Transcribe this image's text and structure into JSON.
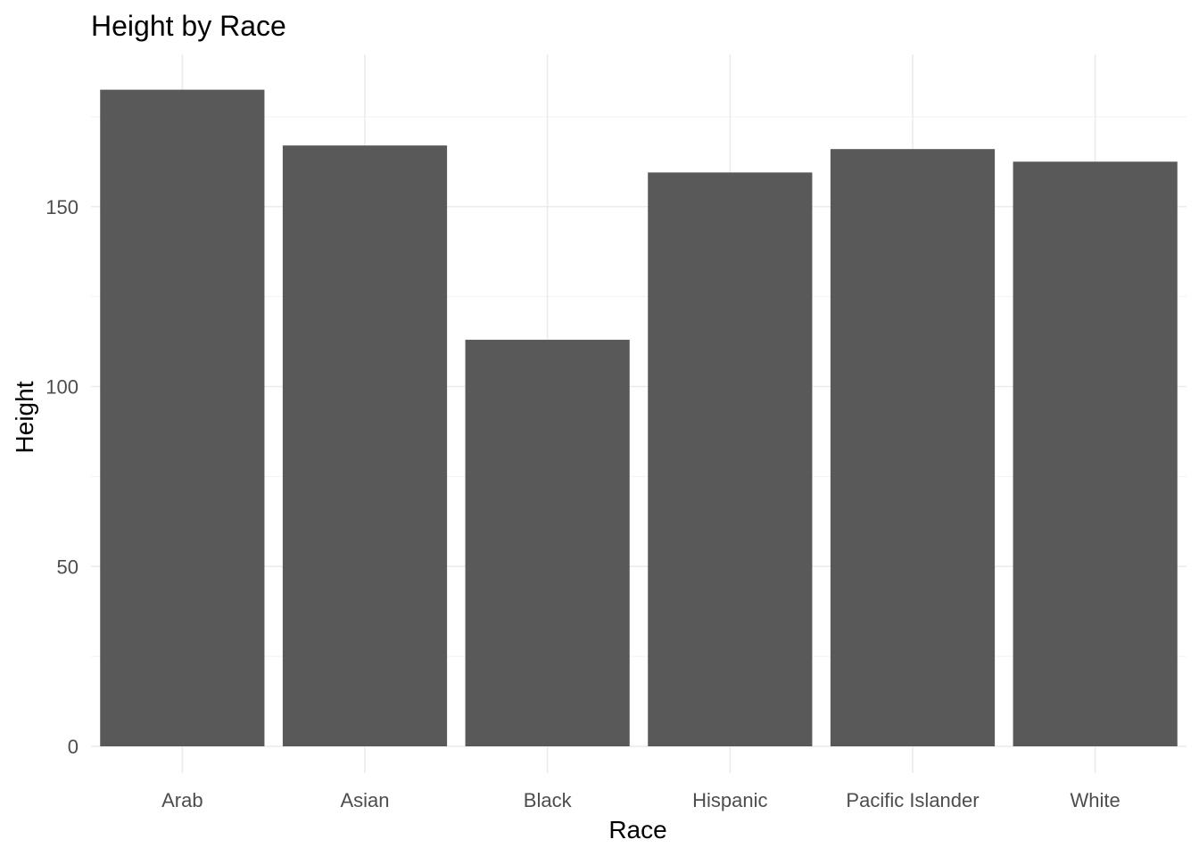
{
  "chart_data": {
    "type": "bar",
    "title": "Height by Race",
    "xlabel": "Race",
    "ylabel": "Height",
    "categories": [
      "Arab",
      "Asian",
      "Black",
      "Hispanic",
      "Pacific Islander",
      "White"
    ],
    "values": [
      182.5,
      167,
      113,
      159.5,
      166,
      162.5
    ],
    "ylim": [
      0,
      192
    ],
    "yticks": [
      0,
      50,
      100,
      150
    ],
    "yticks_labels": [
      "0",
      "50",
      "100",
      "150"
    ],
    "grid": true,
    "bar_color": "#595959"
  }
}
